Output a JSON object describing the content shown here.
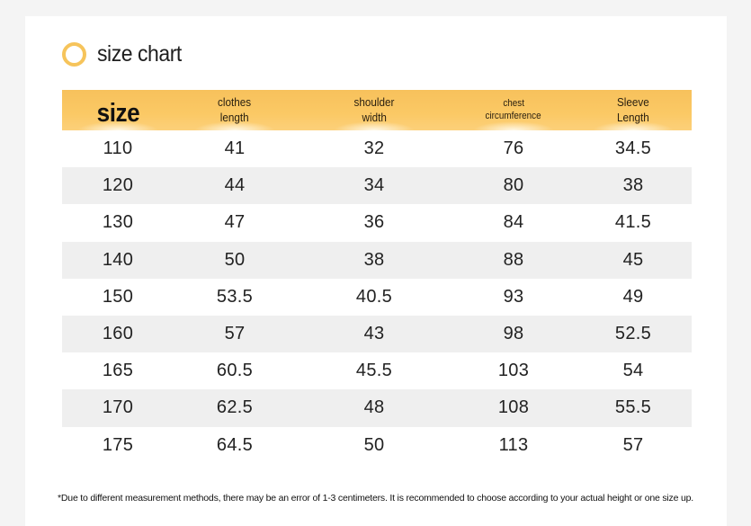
{
  "title": "size chart",
  "colors": {
    "accent": "#f6c45b",
    "header_bg": "#fbc965",
    "row_alt": "#efefef"
  },
  "headers": [
    {
      "line1": "size",
      "line2": ""
    },
    {
      "line1": "clothes",
      "line2": "length"
    },
    {
      "line1": "shoulder",
      "line2": "width"
    },
    {
      "line1": "chest",
      "line2": "circumference"
    },
    {
      "line1": "Sleeve",
      "line2": "Length"
    }
  ],
  "rows": [
    [
      "110",
      "41",
      "32",
      "76",
      "34.5"
    ],
    [
      "120",
      "44",
      "34",
      "80",
      "38"
    ],
    [
      "130",
      "47",
      "36",
      "84",
      "41.5"
    ],
    [
      "140",
      "50",
      "38",
      "88",
      "45"
    ],
    [
      "150",
      "53.5",
      "40.5",
      "93",
      "49"
    ],
    [
      "160",
      "57",
      "43",
      "98",
      "52.5"
    ],
    [
      "165",
      "60.5",
      "45.5",
      "103",
      "54"
    ],
    [
      "170",
      "62.5",
      "48",
      "108",
      "55.5"
    ],
    [
      "175",
      "64.5",
      "50",
      "113",
      "57"
    ]
  ],
  "footnote": "*Due to different measurement methods, there may be an error of 1-3 centimeters. It is recommended to choose according to your actual height or one size up."
}
